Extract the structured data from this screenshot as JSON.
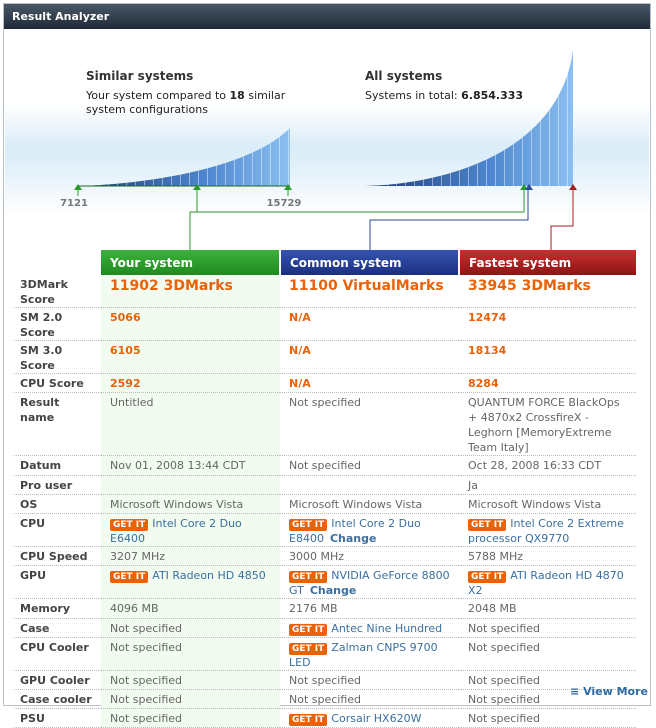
{
  "header": {
    "title": "Result Analyzer"
  },
  "similar": {
    "title": "Similar systems",
    "text_before": "Your system compared to",
    "count": "18",
    "text_after": "similar",
    "text_line2": "system configurations",
    "min": "7121",
    "max": "15729"
  },
  "all": {
    "title": "All systems",
    "text": "Systems in total:",
    "total": "6.854.333"
  },
  "columns": [
    "Your system",
    "Common system",
    "Fastest system"
  ],
  "get_it": "GET IT",
  "change": "Change",
  "rows": [
    {
      "label": "3DMark Score",
      "cells": [
        "11902 3DMarks",
        "11100 VirtualMarks",
        "33945 3DMarks"
      ]
    },
    {
      "label": "SM 2.0 Score",
      "cells": [
        "5066",
        "N/A",
        "12474"
      ]
    },
    {
      "label": "SM 3.0 Score",
      "cells": [
        "6105",
        "N/A",
        "18134"
      ]
    },
    {
      "label": "CPU Score",
      "cells": [
        "2592",
        "N/A",
        "8284"
      ]
    },
    {
      "label": "Result name",
      "cells": [
        "Untitled",
        "Not specified",
        "QUANTUM FORCE BlackOps + 4870x2 CrossfireX - Leghorn [MemoryExtreme Team Italy]"
      ]
    },
    {
      "label": "Datum",
      "cells": [
        "Nov 01, 2008 13:44 CDT",
        "Not specified",
        "Oct 28, 2008 16:33 CDT"
      ]
    },
    {
      "label": "Pro user",
      "cells": [
        "",
        "",
        "Ja"
      ]
    },
    {
      "label": "OS",
      "cells": [
        "Microsoft Windows Vista",
        "Microsoft Windows Vista",
        "Microsoft Windows Vista"
      ]
    },
    {
      "label": "CPU",
      "cells": [
        {
          "text": "Intel Core 2 Duo E6400",
          "get_it": true
        },
        {
          "text": "Intel Core 2 Duo E8400",
          "get_it": true,
          "change": true
        },
        {
          "text": "Intel Core 2 Extreme processor QX9770",
          "get_it": true
        }
      ]
    },
    {
      "label": "CPU Speed",
      "cells": [
        "3207 MHz",
        "3000 MHz",
        "5788 MHz"
      ]
    },
    {
      "label": "GPU",
      "cells": [
        {
          "text": "ATI Radeon HD 4850",
          "get_it": true
        },
        {
          "text": "NVIDIA GeForce 8800 GT",
          "get_it": true,
          "change": true
        },
        {
          "text": "ATI Radeon HD 4870 X2",
          "get_it": true
        }
      ]
    },
    {
      "label": "Memory",
      "cells": [
        "4096 MB",
        "2176 MB",
        "2048 MB"
      ]
    },
    {
      "label": "Case",
      "cells": [
        "Not specified",
        {
          "text": "Antec Nine Hundred",
          "get_it": true
        },
        "Not specified"
      ]
    },
    {
      "label": "CPU Cooler",
      "cells": [
        "Not specified",
        {
          "text": "Zalman CNPS 9700 LED",
          "get_it": true
        },
        "Not specified"
      ]
    },
    {
      "label": "GPU Cooler",
      "cells": [
        "Not specified",
        "Not specified",
        "Not specified"
      ]
    },
    {
      "label": "Case cooler",
      "cells": [
        "Not specified",
        "Not specified",
        "Not specified"
      ]
    },
    {
      "label": "PSU",
      "cells": [
        "Not specified",
        {
          "text": "Corsair HX620W",
          "get_it": true
        },
        "Not specified"
      ]
    }
  ],
  "footer": {
    "link": "View More"
  }
}
